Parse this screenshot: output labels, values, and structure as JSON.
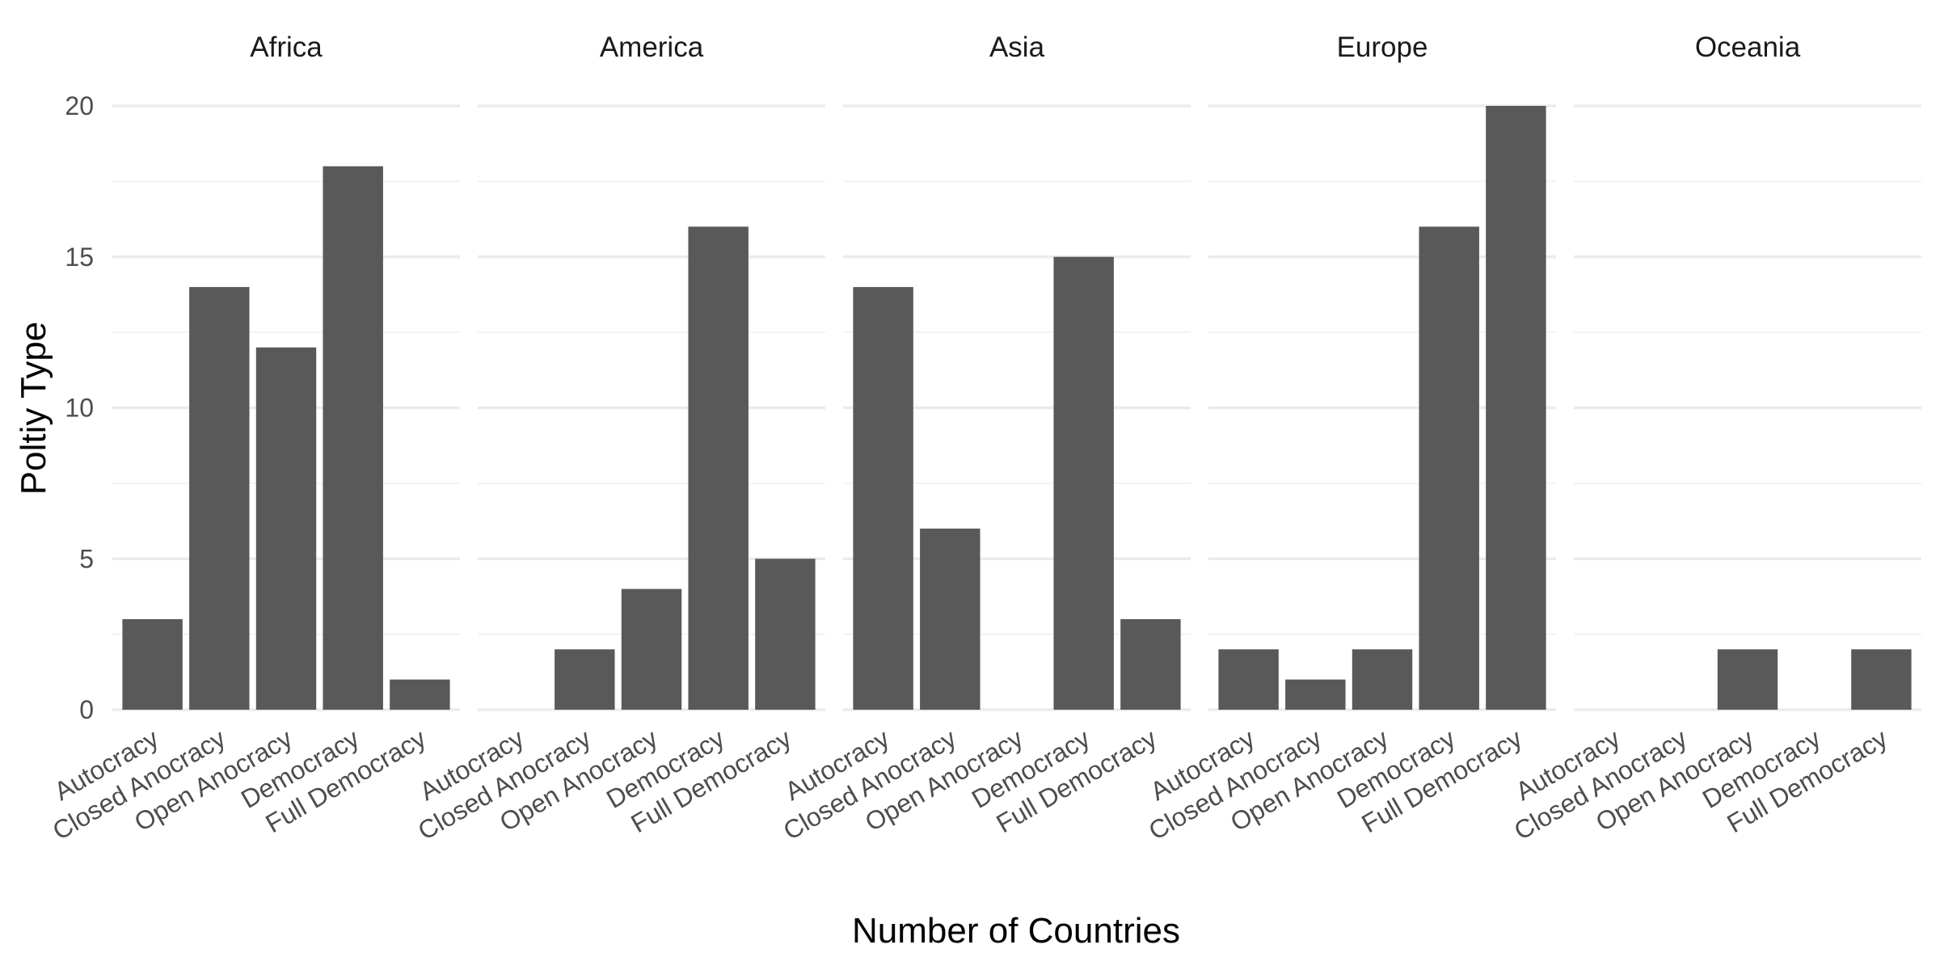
{
  "chart_data": {
    "type": "bar",
    "facets": [
      "Africa",
      "America",
      "Asia",
      "Europe",
      "Oceania"
    ],
    "categories": [
      "Autocracy",
      "Closed Anocracy",
      "Open Anocracy",
      "Democracy",
      "Full Democracy"
    ],
    "series": [
      {
        "facet": "Africa",
        "values": [
          3,
          14,
          12,
          18,
          1
        ]
      },
      {
        "facet": "America",
        "values": [
          0,
          2,
          4,
          16,
          5
        ]
      },
      {
        "facet": "Asia",
        "values": [
          14,
          6,
          0,
          15,
          3
        ]
      },
      {
        "facet": "Europe",
        "values": [
          2,
          1,
          2,
          16,
          20
        ]
      },
      {
        "facet": "Oceania",
        "values": [
          0,
          0,
          2,
          0,
          2
        ]
      }
    ],
    "xlabel": "Number of Countries",
    "ylabel": "Poltiy Type",
    "ylim": [
      0,
      20
    ],
    "yticks": [
      0,
      5,
      10,
      15,
      20
    ],
    "grid": true,
    "bar_color": "#595959",
    "grid_color": "#ebebeb"
  }
}
